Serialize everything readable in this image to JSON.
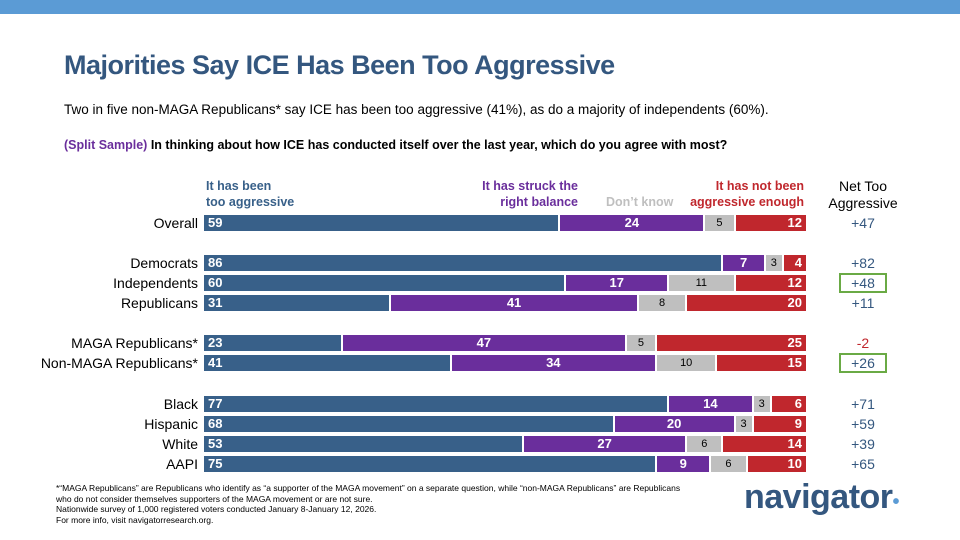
{
  "title": "Majorities Say ICE Has Been Too Aggressive",
  "subtitle": "Two in five non-MAGA Republicans* say ICE has been too aggressive (41%), as do a majority of independents (60%).",
  "question": {
    "tag": "(Split Sample)",
    "text": " In thinking about how ICE has conducted itself over the last year, which do you agree with most?"
  },
  "net_header": [
    "Net Too",
    "Aggressive"
  ],
  "chart_data": {
    "type": "stacked-bar-horizontal",
    "series": [
      {
        "name": "It has been too aggressive",
        "label_lines": [
          "It has been",
          "too aggressive"
        ],
        "color": "#386089"
      },
      {
        "name": "It has struck the right balance",
        "label_lines": [
          "It has struck the",
          "right balance"
        ],
        "color": "#6a2e9c"
      },
      {
        "name": "Don't know",
        "label_lines": [
          "Don’t know"
        ],
        "color": "#bfbfbf"
      },
      {
        "name": "It has not been aggressive enough",
        "label_lines": [
          "It has not been",
          "aggressive enough"
        ],
        "color": "#c0272d"
      }
    ],
    "rows": [
      {
        "label": "Overall",
        "values": [
          59,
          24,
          5,
          12
        ],
        "net": "+47",
        "highlight": false
      },
      {
        "label": "Democrats",
        "values": [
          86,
          7,
          3,
          4
        ],
        "net": "+82",
        "highlight": false
      },
      {
        "label": "Independents",
        "values": [
          60,
          17,
          11,
          12
        ],
        "net": "+48",
        "highlight": true
      },
      {
        "label": "Republicans",
        "values": [
          31,
          41,
          8,
          20
        ],
        "net": "+11",
        "highlight": false
      },
      {
        "label": "MAGA Republicans*",
        "values": [
          23,
          47,
          5,
          25
        ],
        "net": "-2",
        "highlight": false
      },
      {
        "label": "Non-MAGA Republicans*",
        "values": [
          41,
          34,
          10,
          15
        ],
        "net": "+26",
        "highlight": true
      },
      {
        "label": "Black",
        "values": [
          77,
          14,
          3,
          6
        ],
        "net": "+71",
        "highlight": false
      },
      {
        "label": "Hispanic",
        "values": [
          68,
          20,
          3,
          9
        ],
        "net": "+59",
        "highlight": false
      },
      {
        "label": "White",
        "values": [
          53,
          27,
          6,
          14
        ],
        "net": "+39",
        "highlight": false
      },
      {
        "label": "AAPI",
        "values": [
          75,
          9,
          6,
          10
        ],
        "net": "+65",
        "highlight": false
      }
    ],
    "net_colors": {
      "positive": "#34577f",
      "negative": "#c0272d"
    }
  },
  "footnotes": [
    "*“MAGA Republicans” are Republicans who identify as “a supporter of the MAGA movement” on a separate question, while “non-MAGA Republicans” are Republicans who do not consider themselves supporters of the MAGA movement or are not sure.",
    "Nationwide survey of 1,000 registered voters conducted January 8-January 12, 2026.",
    "For more info, visit navigatorresearch.org."
  ],
  "logo": "navigator"
}
